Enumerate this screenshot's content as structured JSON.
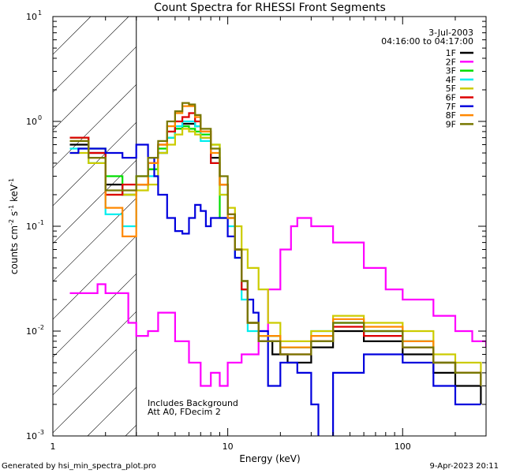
{
  "chart_data": {
    "type": "line",
    "title": "Count Spectra for RHESSI Front Segments",
    "xlabel": "Energy (keV)",
    "ylabel_main": "counts cm",
    "ylabel_exp1": "-2",
    "ylabel_s": " s",
    "ylabel_exp2": "-1",
    "ylabel_kev": " keV",
    "ylabel_exp3": "-1",
    "xscale": "log",
    "yscale": "log",
    "xlim": [
      1,
      300
    ],
    "ylim": [
      0.001,
      10
    ],
    "x_ticks": [
      {
        "value": 10,
        "label": "10"
      },
      {
        "value": 100,
        "label": "100"
      }
    ],
    "x_tick_1": "1",
    "y_ticks": [
      {
        "value": 0.001,
        "base": "10",
        "exp": "-3"
      },
      {
        "value": 0.01,
        "base": "10",
        "exp": "-2"
      },
      {
        "value": 0.1,
        "base": "10",
        "exp": "-1"
      },
      {
        "value": 1,
        "base": "10",
        "exp": "0"
      },
      {
        "value": 10,
        "base": "10",
        "exp": "1"
      }
    ],
    "hatched_region_max_energy": 3,
    "legend_date": "3-Jul-2003",
    "legend_time": "04:16:00 to 04:17:00",
    "series": [
      {
        "name": "1F",
        "color": "#000000",
        "values": [
          [
            1.25,
            0.6
          ],
          [
            1.6,
            0.5
          ],
          [
            2,
            0.25
          ],
          [
            2.5,
            0.2
          ],
          [
            3,
            0.25
          ],
          [
            3.5,
            0.35
          ],
          [
            4,
            0.5
          ],
          [
            4.5,
            0.7
          ],
          [
            5,
            0.85
          ],
          [
            5.5,
            0.95
          ],
          [
            6,
            0.95
          ],
          [
            6.5,
            0.9
          ],
          [
            7,
            0.7
          ],
          [
            8,
            0.45
          ],
          [
            9,
            0.25
          ],
          [
            10,
            0.12
          ],
          [
            11,
            0.06
          ],
          [
            12,
            0.025
          ],
          [
            13,
            0.012
          ],
          [
            15,
            0.008
          ],
          [
            18,
            0.006
          ],
          [
            22,
            0.005
          ],
          [
            30,
            0.007
          ],
          [
            40,
            0.01
          ],
          [
            60,
            0.008
          ],
          [
            100,
            0.006
          ],
          [
            150,
            0.004
          ],
          [
            200,
            0.003
          ],
          [
            280,
            0.002
          ]
        ]
      },
      {
        "name": "2F",
        "color": "#ff00ff",
        "values": [
          [
            1.25,
            0.023
          ],
          [
            1.6,
            0.023
          ],
          [
            1.8,
            0.028
          ],
          [
            2,
            0.023
          ],
          [
            2.5,
            0.023
          ],
          [
            2.7,
            0.012
          ],
          [
            3,
            0.009
          ],
          [
            3.5,
            0.01
          ],
          [
            4,
            0.015
          ],
          [
            5,
            0.008
          ],
          [
            6,
            0.005
          ],
          [
            7,
            0.003
          ],
          [
            8,
            0.004
          ],
          [
            9,
            0.003
          ],
          [
            10,
            0.005
          ],
          [
            12,
            0.006
          ],
          [
            15,
            0.01
          ],
          [
            17,
            0.025
          ],
          [
            20,
            0.06
          ],
          [
            23,
            0.1
          ],
          [
            25,
            0.12
          ],
          [
            30,
            0.1
          ],
          [
            40,
            0.07
          ],
          [
            60,
            0.04
          ],
          [
            80,
            0.025
          ],
          [
            100,
            0.02
          ],
          [
            150,
            0.014
          ],
          [
            200,
            0.01
          ],
          [
            250,
            0.008
          ],
          [
            300,
            0.007
          ]
        ]
      },
      {
        "name": "3F",
        "color": "#00dd00",
        "values": [
          [
            1.25,
            0.7
          ],
          [
            1.6,
            0.55
          ],
          [
            2,
            0.3
          ],
          [
            2.5,
            0.2
          ],
          [
            3,
            0.3
          ],
          [
            3.5,
            0.35
          ],
          [
            4,
            0.55
          ],
          [
            4.5,
            0.7
          ],
          [
            5,
            0.85
          ],
          [
            5.5,
            0.9
          ],
          [
            6,
            0.85
          ],
          [
            6.5,
            0.8
          ],
          [
            7,
            0.75
          ],
          [
            8,
            0.6
          ],
          [
            9,
            0.12
          ],
          [
            10,
            0.12
          ],
          [
            11,
            0.06
          ],
          [
            12,
            0.03
          ],
          [
            13,
            0.012
          ],
          [
            15,
            0.009
          ],
          [
            20,
            0.007
          ],
          [
            30,
            0.008
          ],
          [
            40,
            0.012
          ],
          [
            60,
            0.01
          ],
          [
            100,
            0.008
          ],
          [
            150,
            0.005
          ],
          [
            200,
            0.004
          ],
          [
            280,
            0.003
          ]
        ]
      },
      {
        "name": "4F",
        "color": "#00eeee",
        "values": [
          [
            1.25,
            0.55
          ],
          [
            1.6,
            0.4
          ],
          [
            2,
            0.13
          ],
          [
            2.5,
            0.1
          ],
          [
            3,
            0.25
          ],
          [
            3.5,
            0.3
          ],
          [
            4,
            0.5
          ],
          [
            4.5,
            0.7
          ],
          [
            5,
            0.9
          ],
          [
            5.5,
            1.0
          ],
          [
            6,
            1.0
          ],
          [
            6.5,
            0.9
          ],
          [
            7,
            0.65
          ],
          [
            8,
            0.4
          ],
          [
            9,
            0.2
          ],
          [
            10,
            0.1
          ],
          [
            11,
            0.05
          ],
          [
            12,
            0.02
          ],
          [
            13,
            0.01
          ],
          [
            15,
            0.008
          ],
          [
            20,
            0.007
          ],
          [
            30,
            0.01
          ],
          [
            40,
            0.012
          ],
          [
            60,
            0.01
          ],
          [
            100,
            0.008
          ],
          [
            150,
            0.005
          ],
          [
            200,
            0.004
          ],
          [
            280,
            0.003
          ]
        ]
      },
      {
        "name": "5F",
        "color": "#cccc00",
        "values": [
          [
            1.25,
            0.5
          ],
          [
            1.6,
            0.4
          ],
          [
            2,
            0.2
          ],
          [
            2.5,
            0.2
          ],
          [
            3,
            0.22
          ],
          [
            3.5,
            0.25
          ],
          [
            4,
            0.5
          ],
          [
            4.5,
            0.6
          ],
          [
            5,
            0.75
          ],
          [
            5.5,
            0.85
          ],
          [
            6,
            0.8
          ],
          [
            6.5,
            0.75
          ],
          [
            7,
            0.7
          ],
          [
            8,
            0.6
          ],
          [
            9,
            0.2
          ],
          [
            10,
            0.15
          ],
          [
            11,
            0.1
          ],
          [
            12,
            0.06
          ],
          [
            13,
            0.04
          ],
          [
            15,
            0.025
          ],
          [
            17,
            0.012
          ],
          [
            20,
            0.008
          ],
          [
            30,
            0.01
          ],
          [
            40,
            0.014
          ],
          [
            60,
            0.012
          ],
          [
            100,
            0.01
          ],
          [
            150,
            0.006
          ],
          [
            200,
            0.005
          ],
          [
            280,
            0.003
          ]
        ]
      },
      {
        "name": "6F",
        "color": "#dd0000",
        "values": [
          [
            1.25,
            0.7
          ],
          [
            1.6,
            0.5
          ],
          [
            2,
            0.2
          ],
          [
            2.5,
            0.25
          ],
          [
            3,
            0.25
          ],
          [
            3.5,
            0.4
          ],
          [
            4,
            0.6
          ],
          [
            4.5,
            0.8
          ],
          [
            5,
            1.0
          ],
          [
            5.5,
            1.1
          ],
          [
            6,
            1.2
          ],
          [
            6.5,
            1.0
          ],
          [
            7,
            0.8
          ],
          [
            8,
            0.4
          ],
          [
            9,
            0.25
          ],
          [
            10,
            0.13
          ],
          [
            11,
            0.06
          ],
          [
            12,
            0.025
          ],
          [
            13,
            0.012
          ],
          [
            15,
            0.008
          ],
          [
            20,
            0.006
          ],
          [
            30,
            0.008
          ],
          [
            40,
            0.011
          ],
          [
            60,
            0.009
          ],
          [
            100,
            0.007
          ],
          [
            150,
            0.005
          ],
          [
            200,
            0.004
          ],
          [
            280,
            0.003
          ]
        ]
      },
      {
        "name": "7F",
        "color": "#0000dd",
        "values": [
          [
            1.25,
            0.5
          ],
          [
            1.4,
            0.55
          ],
          [
            1.6,
            0.55
          ],
          [
            2,
            0.5
          ],
          [
            2.5,
            0.45
          ],
          [
            3,
            0.6
          ],
          [
            3.5,
            0.45
          ],
          [
            3.8,
            0.3
          ],
          [
            4,
            0.2
          ],
          [
            4.5,
            0.12
          ],
          [
            5,
            0.09
          ],
          [
            5.5,
            0.085
          ],
          [
            6,
            0.12
          ],
          [
            6.5,
            0.16
          ],
          [
            7,
            0.14
          ],
          [
            7.5,
            0.1
          ],
          [
            8,
            0.12
          ],
          [
            9,
            0.12
          ],
          [
            10,
            0.08
          ],
          [
            11,
            0.05
          ],
          [
            12,
            0.03
          ],
          [
            13,
            0.02
          ],
          [
            14,
            0.015
          ],
          [
            15,
            0.01
          ],
          [
            17,
            0.003
          ],
          [
            20,
            0.005
          ],
          [
            25,
            0.004
          ],
          [
            30,
            0.002
          ],
          [
            33,
            0.0007
          ],
          [
            40,
            0.004
          ],
          [
            60,
            0.006
          ],
          [
            100,
            0.005
          ],
          [
            150,
            0.003
          ],
          [
            200,
            0.002
          ],
          [
            280,
            0.002
          ]
        ]
      },
      {
        "name": "8F",
        "color": "#ff8800",
        "values": [
          [
            1.25,
            0.65
          ],
          [
            1.6,
            0.45
          ],
          [
            2,
            0.15
          ],
          [
            2.5,
            0.08
          ],
          [
            3,
            0.25
          ],
          [
            3.5,
            0.4
          ],
          [
            4,
            0.6
          ],
          [
            4.5,
            0.9
          ],
          [
            5,
            1.2
          ],
          [
            5.5,
            1.4
          ],
          [
            6,
            1.4
          ],
          [
            6.5,
            1.1
          ],
          [
            7,
            0.8
          ],
          [
            8,
            0.5
          ],
          [
            9,
            0.25
          ],
          [
            10,
            0.12
          ],
          [
            11,
            0.06
          ],
          [
            12,
            0.03
          ],
          [
            13,
            0.012
          ],
          [
            15,
            0.009
          ],
          [
            20,
            0.007
          ],
          [
            30,
            0.009
          ],
          [
            40,
            0.013
          ],
          [
            60,
            0.011
          ],
          [
            100,
            0.008
          ],
          [
            150,
            0.005
          ],
          [
            200,
            0.004
          ],
          [
            280,
            0.003
          ]
        ]
      },
      {
        "name": "9F",
        "color": "#777700",
        "values": [
          [
            1.25,
            0.65
          ],
          [
            1.6,
            0.45
          ],
          [
            2,
            0.22
          ],
          [
            2.5,
            0.22
          ],
          [
            3,
            0.3
          ],
          [
            3.5,
            0.45
          ],
          [
            4,
            0.65
          ],
          [
            4.5,
            1.0
          ],
          [
            5,
            1.25
          ],
          [
            5.5,
            1.5
          ],
          [
            6,
            1.45
          ],
          [
            6.5,
            1.15
          ],
          [
            7,
            0.85
          ],
          [
            8,
            0.55
          ],
          [
            9,
            0.3
          ],
          [
            10,
            0.13
          ],
          [
            11,
            0.06
          ],
          [
            12,
            0.03
          ],
          [
            13,
            0.012
          ],
          [
            15,
            0.008
          ],
          [
            20,
            0.006
          ],
          [
            30,
            0.008
          ],
          [
            40,
            0.012
          ],
          [
            60,
            0.01
          ],
          [
            100,
            0.007
          ],
          [
            150,
            0.005
          ],
          [
            200,
            0.004
          ],
          [
            280,
            0.003
          ]
        ]
      }
    ],
    "annotations": [
      "Includes Background",
      "Att A0, FDecim 2"
    ],
    "footer_left": "Generated by hsi_min_spectra_plot.pro",
    "footer_right": "9-Apr-2023 20:11"
  }
}
